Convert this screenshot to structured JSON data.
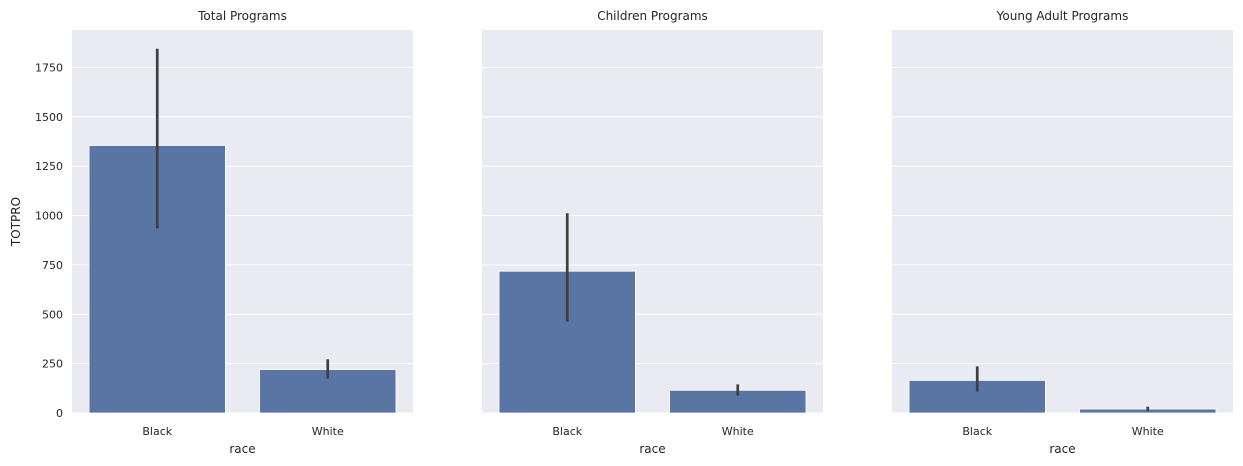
{
  "colors": {
    "background": "#eaeaf2",
    "grid": "#ffffff",
    "bar": "#5975a4",
    "errorbar": "#3f3f3f"
  },
  "chart_data": [
    {
      "type": "bar",
      "title": "Total Programs",
      "xlabel": "race",
      "ylabel": "TOTPRO",
      "categories": [
        "Black",
        "White"
      ],
      "values": [
        1355,
        220
      ],
      "ci_low": [
        935,
        175
      ],
      "ci_high": [
        1845,
        272
      ],
      "ylim": [
        0,
        1940
      ],
      "yticks": [
        0,
        250,
        500,
        750,
        1000,
        1250,
        1500,
        1750
      ],
      "grid": true,
      "show_yticklabels": true
    },
    {
      "type": "bar",
      "title": "Children Programs",
      "xlabel": "race",
      "ylabel": "",
      "categories": [
        "Black",
        "White"
      ],
      "values": [
        718,
        115
      ],
      "ci_low": [
        463,
        88
      ],
      "ci_high": [
        1012,
        145
      ],
      "ylim": [
        0,
        1940
      ],
      "yticks": [
        0,
        250,
        500,
        750,
        1000,
        1250,
        1500,
        1750
      ],
      "grid": true,
      "show_yticklabels": false
    },
    {
      "type": "bar",
      "title": "Young Adult Programs",
      "xlabel": "race",
      "ylabel": "",
      "categories": [
        "Black",
        "White"
      ],
      "values": [
        165,
        20
      ],
      "ci_low": [
        108,
        10
      ],
      "ci_high": [
        236,
        32
      ],
      "ylim": [
        0,
        1940
      ],
      "yticks": [
        0,
        250,
        500,
        750,
        1000,
        1250,
        1500,
        1750
      ],
      "grid": true,
      "show_yticklabels": false
    }
  ]
}
